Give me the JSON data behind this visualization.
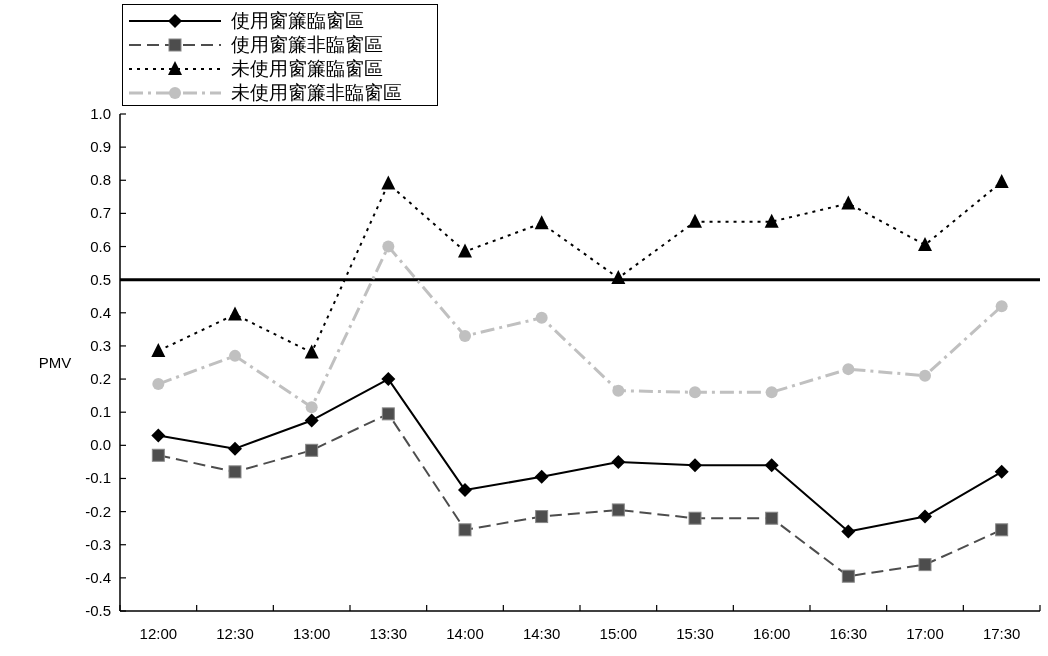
{
  "chart_data": {
    "type": "line",
    "ylabel": "PMV",
    "categories": [
      "12:00",
      "12:30",
      "13:00",
      "13:30",
      "14:00",
      "14:30",
      "15:00",
      "15:30",
      "16:00",
      "16:30",
      "17:00",
      "17:30"
    ],
    "series": [
      {
        "name": "使用窗簾臨窗區",
        "color": "#000000",
        "line_style": "solid",
        "marker": "diamond",
        "values": [
          0.03,
          -0.01,
          0.075,
          0.2,
          -0.135,
          -0.095,
          -0.05,
          -0.06,
          -0.06,
          -0.26,
          -0.215,
          -0.08
        ]
      },
      {
        "name": "使用窗簾非臨窗區",
        "color": "#4d4d4d",
        "line_style": "dashed",
        "marker": "square",
        "values": [
          -0.03,
          -0.08,
          -0.015,
          0.095,
          -0.255,
          -0.215,
          -0.195,
          -0.22,
          -0.22,
          -0.395,
          -0.36,
          -0.255
        ]
      },
      {
        "name": "未使用窗簾臨窗區",
        "color": "#000000",
        "line_style": "dotted",
        "marker": "triangle",
        "values": [
          0.285,
          0.395,
          0.28,
          0.79,
          0.585,
          0.67,
          0.505,
          0.675,
          0.675,
          0.73,
          0.605,
          0.795
        ]
      },
      {
        "name": "未使用窗簾非臨窗區",
        "color": "#c0c0c0",
        "line_style": "dashdot",
        "marker": "circle",
        "values": [
          0.185,
          0.27,
          0.115,
          0.6,
          0.33,
          0.385,
          0.165,
          0.16,
          0.16,
          0.23,
          0.21,
          0.42
        ]
      }
    ],
    "ylim": [
      -0.5,
      1.0
    ],
    "yticks": [
      {
        "value": -0.5,
        "label": "-0.5"
      },
      {
        "value": -0.4,
        "label": "-0.4"
      },
      {
        "value": -0.3,
        "label": "-0.3"
      },
      {
        "value": -0.2,
        "label": "-0.2"
      },
      {
        "value": -0.1,
        "label": "-0.1"
      },
      {
        "value": 0,
        "label": "0.0"
      },
      {
        "value": 0.1,
        "label": "0.1"
      },
      {
        "value": 0.2,
        "label": "0.2"
      },
      {
        "value": 0.3,
        "label": "0.3"
      },
      {
        "value": 0.4,
        "label": "0.4"
      },
      {
        "value": 0.5,
        "label": "0.5"
      },
      {
        "value": 0.6,
        "label": "0.6"
      },
      {
        "value": 0.7,
        "label": "0.7"
      },
      {
        "value": 0.8,
        "label": "0.8"
      },
      {
        "value": 0.9,
        "label": "0.9"
      },
      {
        "value": 1,
        "label": "1.0"
      }
    ],
    "ref_lines": [
      {
        "axis": "y",
        "value": 0.5,
        "color": "#000000",
        "line_style": "solid"
      }
    ],
    "grid": false,
    "legend": "top left"
  }
}
